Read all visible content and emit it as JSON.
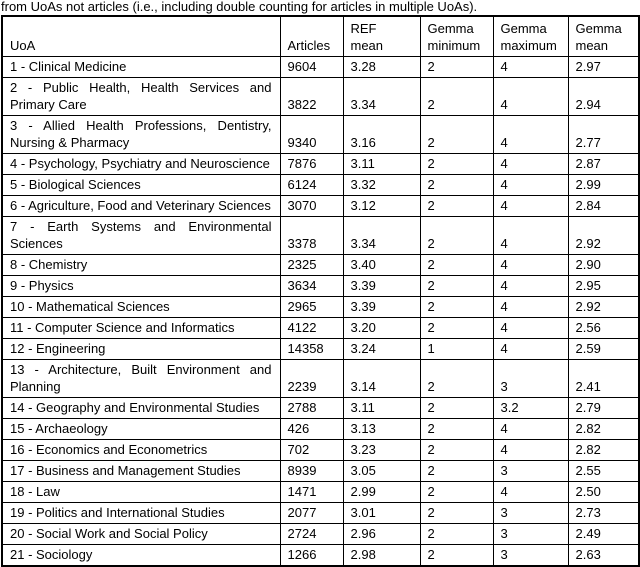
{
  "caption": "from UoAs not articles (i.e., including double counting for articles in multiple UoAs).",
  "colors": {
    "border": "#000000",
    "text": "#000000",
    "background": "#ffffff"
  },
  "table": {
    "columns": [
      {
        "key": "uoa",
        "label": "UoA"
      },
      {
        "key": "articles",
        "label": "Articles"
      },
      {
        "key": "ref_mean",
        "label": "REF mean"
      },
      {
        "key": "gemma_min",
        "label": "Gemma minimum"
      },
      {
        "key": "gemma_max",
        "label": "Gemma maximum"
      },
      {
        "key": "gemma_mean",
        "label": "Gemma mean"
      }
    ],
    "rows": [
      {
        "uoa": "1 - Clinical Medicine",
        "articles": "9604",
        "ref_mean": "3.28",
        "gemma_min": "2",
        "gemma_max": "4",
        "gemma_mean": "2.97"
      },
      {
        "uoa": "2 - Public Health, Health Services and Primary Care",
        "articles": "3822",
        "ref_mean": "3.34",
        "gemma_min": "2",
        "gemma_max": "4",
        "gemma_mean": "2.94"
      },
      {
        "uoa": "3 - Allied Health Professions, Dentistry, Nursing & Pharmacy",
        "articles": "9340",
        "ref_mean": "3.16",
        "gemma_min": "2",
        "gemma_max": "4",
        "gemma_mean": "2.77"
      },
      {
        "uoa": "4 - Psychology, Psychiatry and Neuroscience",
        "articles": "7876",
        "ref_mean": "3.11",
        "gemma_min": "2",
        "gemma_max": "4",
        "gemma_mean": "2.87"
      },
      {
        "uoa": "5 - Biological Sciences",
        "articles": "6124",
        "ref_mean": "3.32",
        "gemma_min": "2",
        "gemma_max": "4",
        "gemma_mean": "2.99"
      },
      {
        "uoa": "6 - Agriculture, Food and Veterinary Sciences",
        "articles": "3070",
        "ref_mean": "3.12",
        "gemma_min": "2",
        "gemma_max": "4",
        "gemma_mean": "2.84"
      },
      {
        "uoa": "7 - Earth Systems and Environmental Sciences",
        "articles": "3378",
        "ref_mean": "3.34",
        "gemma_min": "2",
        "gemma_max": "4",
        "gemma_mean": "2.92"
      },
      {
        "uoa": "8 - Chemistry",
        "articles": "2325",
        "ref_mean": "3.40",
        "gemma_min": "2",
        "gemma_max": "4",
        "gemma_mean": "2.90"
      },
      {
        "uoa": "9 - Physics",
        "articles": "3634",
        "ref_mean": "3.39",
        "gemma_min": "2",
        "gemma_max": "4",
        "gemma_mean": "2.95"
      },
      {
        "uoa": "10 - Mathematical Sciences",
        "articles": "2965",
        "ref_mean": "3.39",
        "gemma_min": "2",
        "gemma_max": "4",
        "gemma_mean": "2.92"
      },
      {
        "uoa": "11 - Computer Science and Informatics",
        "articles": "4122",
        "ref_mean": "3.20",
        "gemma_min": "2",
        "gemma_max": "4",
        "gemma_mean": "2.56"
      },
      {
        "uoa": "12 - Engineering",
        "articles": "14358",
        "ref_mean": "3.24",
        "gemma_min": "1",
        "gemma_max": "4",
        "gemma_mean": "2.59"
      },
      {
        "uoa": "13 - Architecture, Built Environment and Planning",
        "articles": "2239",
        "ref_mean": "3.14",
        "gemma_min": "2",
        "gemma_max": "3",
        "gemma_mean": "2.41"
      },
      {
        "uoa": "14 - Geography and Environmental Studies",
        "articles": "2788",
        "ref_mean": "3.11",
        "gemma_min": "2",
        "gemma_max": "3.2",
        "gemma_mean": "2.79"
      },
      {
        "uoa": "15 - Archaeology",
        "articles": "426",
        "ref_mean": "3.13",
        "gemma_min": "2",
        "gemma_max": "4",
        "gemma_mean": "2.82"
      },
      {
        "uoa": "16 - Economics and Econometrics",
        "articles": "702",
        "ref_mean": "3.23",
        "gemma_min": "2",
        "gemma_max": "4",
        "gemma_mean": "2.82"
      },
      {
        "uoa": "17 - Business and Management Studies",
        "articles": "8939",
        "ref_mean": "3.05",
        "gemma_min": "2",
        "gemma_max": "3",
        "gemma_mean": "2.55"
      },
      {
        "uoa": "18 - Law",
        "articles": "1471",
        "ref_mean": "2.99",
        "gemma_min": "2",
        "gemma_max": "4",
        "gemma_mean": "2.50"
      },
      {
        "uoa": "19 - Politics and International Studies",
        "articles": "2077",
        "ref_mean": "3.01",
        "gemma_min": "2",
        "gemma_max": "3",
        "gemma_mean": "2.73"
      },
      {
        "uoa": "20 - Social Work and Social Policy",
        "articles": "2724",
        "ref_mean": "2.96",
        "gemma_min": "2",
        "gemma_max": "3",
        "gemma_mean": "2.49"
      },
      {
        "uoa": "21 - Sociology",
        "articles": "1266",
        "ref_mean": "2.98",
        "gemma_min": "2",
        "gemma_max": "3",
        "gemma_mean": "2.63"
      }
    ]
  }
}
